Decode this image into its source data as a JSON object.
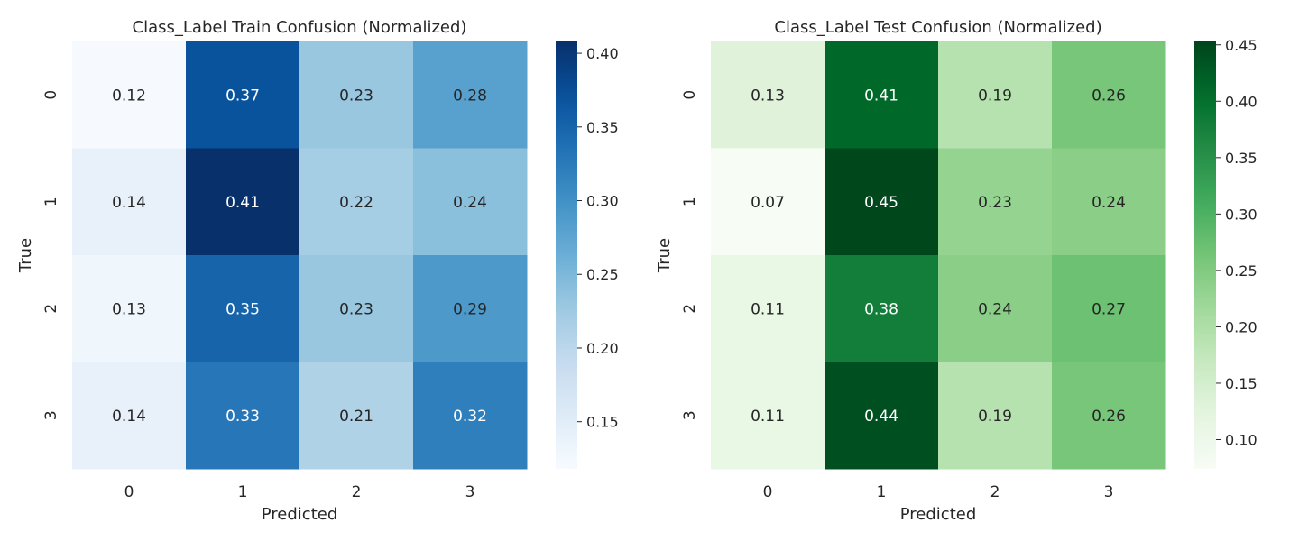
{
  "chart_data": [
    {
      "type": "heatmap",
      "title": "Class_Label Train Confusion (Normalized)",
      "xlabel": "Predicted",
      "ylabel": "True",
      "x_categories": [
        "0",
        "1",
        "2",
        "3"
      ],
      "y_categories": [
        "0",
        "1",
        "2",
        "3"
      ],
      "values": [
        [
          0.12,
          0.37,
          0.23,
          0.28
        ],
        [
          0.14,
          0.41,
          0.22,
          0.24
        ],
        [
          0.13,
          0.35,
          0.23,
          0.29
        ],
        [
          0.14,
          0.33,
          0.21,
          0.32
        ]
      ],
      "cell_labels": [
        [
          "0.12",
          "0.37",
          "0.23",
          "0.28"
        ],
        [
          "0.14",
          "0.41",
          "0.22",
          "0.24"
        ],
        [
          "0.13",
          "0.35",
          "0.23",
          "0.29"
        ],
        [
          "0.14",
          "0.33",
          "0.21",
          "0.32"
        ]
      ],
      "colormap": "Blues",
      "colorbar_range": [
        0.118,
        0.408
      ],
      "colorbar_ticks": [
        0.15,
        0.2,
        0.25,
        0.3,
        0.35,
        0.4
      ],
      "colorbar_tick_labels": [
        "0.15",
        "0.20",
        "0.25",
        "0.30",
        "0.35",
        "0.40"
      ]
    },
    {
      "type": "heatmap",
      "title": "Class_Label Test Confusion (Normalized)",
      "xlabel": "Predicted",
      "ylabel": "True",
      "x_categories": [
        "0",
        "1",
        "2",
        "3"
      ],
      "y_categories": [
        "0",
        "1",
        "2",
        "3"
      ],
      "values": [
        [
          0.13,
          0.41,
          0.19,
          0.26
        ],
        [
          0.07,
          0.45,
          0.23,
          0.24
        ],
        [
          0.11,
          0.38,
          0.24,
          0.27
        ],
        [
          0.11,
          0.44,
          0.19,
          0.26
        ]
      ],
      "cell_labels": [
        [
          "0.13",
          "0.41",
          "0.19",
          "0.26"
        ],
        [
          "0.07",
          "0.45",
          "0.23",
          "0.24"
        ],
        [
          "0.11",
          "0.38",
          "0.24",
          "0.27"
        ],
        [
          "0.11",
          "0.44",
          "0.19",
          "0.26"
        ]
      ],
      "colormap": "Greens",
      "colorbar_range": [
        0.074,
        0.453
      ],
      "colorbar_ticks": [
        0.1,
        0.15,
        0.2,
        0.25,
        0.3,
        0.35,
        0.4,
        0.45
      ],
      "colorbar_tick_labels": [
        "0.10",
        "0.15",
        "0.20",
        "0.25",
        "0.30",
        "0.35",
        "0.40",
        "0.45"
      ]
    }
  ]
}
